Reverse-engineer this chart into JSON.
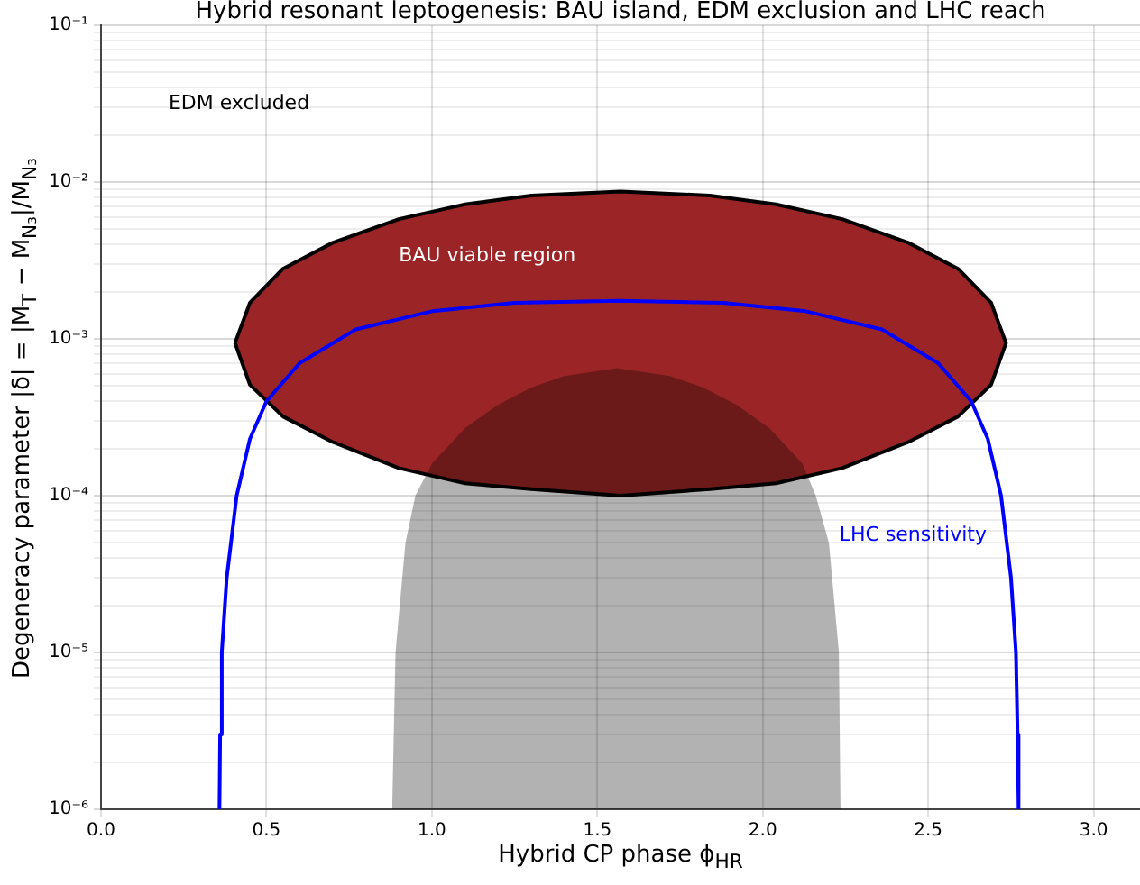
{
  "chart_data": {
    "type": "line",
    "title": "Hybrid resonant leptogenesis: BAU island, EDM exclusion and LHC reach",
    "xlabel": "Hybrid CP phase ϕ$_{HR}$",
    "ylabel": "Degeneracy parameter |δ| = |M$_{T}$ − M$_{N₃}$|/M$_{N₃}$",
    "log": "y",
    "grid": true,
    "marker": "none",
    "line_style": "solid",
    "xlim": [
      0,
      3.14
    ],
    "xticks": [
      {
        "value": 0,
        "label": "0.0"
      },
      {
        "value": 0.5,
        "label": "0.5"
      },
      {
        "value": 1,
        "label": "1.0"
      },
      {
        "value": 1.5,
        "label": "1.5"
      },
      {
        "value": 2,
        "label": "2.0"
      },
      {
        "value": 2.5,
        "label": "2.5"
      },
      {
        "value": 3,
        "label": "3.0"
      }
    ],
    "ylim": [
      1e-06,
      0.1
    ],
    "yticks": [
      {
        "value": 1e-06,
        "label": "10⁻⁶"
      },
      {
        "value": 2e-06,
        "label": null
      },
      {
        "value": 3e-06,
        "label": null
      },
      {
        "value": 4e-06,
        "label": null
      },
      {
        "value": 5e-06,
        "label": null
      },
      {
        "value": 6e-06,
        "label": null
      },
      {
        "value": 7e-06,
        "label": null
      },
      {
        "value": 8e-06,
        "label": null
      },
      {
        "value": 9e-06,
        "label": null
      },
      {
        "value": 1e-05,
        "label": "10⁻⁵"
      },
      {
        "value": 2e-05,
        "label": null
      },
      {
        "value": 3e-05,
        "label": null
      },
      {
        "value": 4e-05,
        "label": null
      },
      {
        "value": 5e-05,
        "label": null
      },
      {
        "value": 6e-05,
        "label": null
      },
      {
        "value": 7e-05,
        "label": null
      },
      {
        "value": 8e-05,
        "label": null
      },
      {
        "value": 9e-05,
        "label": null
      },
      {
        "value": 0.0001,
        "label": "10⁻⁴"
      },
      {
        "value": 0.0002,
        "label": null
      },
      {
        "value": 0.0003,
        "label": null
      },
      {
        "value": 0.0004,
        "label": null
      },
      {
        "value": 0.0005,
        "label": null
      },
      {
        "value": 0.0006,
        "label": null
      },
      {
        "value": 0.0007,
        "label": null
      },
      {
        "value": 0.0008,
        "label": null
      },
      {
        "value": 0.0009,
        "label": null
      },
      {
        "value": 0.001,
        "label": "10⁻³"
      },
      {
        "value": 0.002,
        "label": null
      },
      {
        "value": 0.003,
        "label": null
      },
      {
        "value": 0.004,
        "label": null
      },
      {
        "value": 0.005,
        "label": null
      },
      {
        "value": 0.006,
        "label": null
      },
      {
        "value": 0.007,
        "label": null
      },
      {
        "value": 0.008,
        "label": null
      },
      {
        "value": 0.009,
        "label": null
      },
      {
        "value": 0.01,
        "label": "10⁻²"
      },
      {
        "value": 0.02,
        "label": null
      },
      {
        "value": 0.03,
        "label": null
      },
      {
        "value": 0.04,
        "label": null
      },
      {
        "value": 0.05,
        "label": null
      },
      {
        "value": 0.06,
        "label": null
      },
      {
        "value": 0.07,
        "label": null
      },
      {
        "value": 0.08,
        "label": null
      },
      {
        "value": 0.09,
        "label": null
      },
      {
        "value": 0.1,
        "label": "10⁻¹"
      }
    ],
    "series": [
      {
        "type": "area",
        "name": "BAU viable region",
        "color": "#9b2526",
        "x": [
          0.405,
          0.45,
          0.55,
          0.7,
          0.9,
          1.1,
          1.3,
          1.57,
          1.84,
          2.04,
          2.24,
          2.44,
          2.59,
          2.69,
          2.735,
          2.69,
          2.59,
          2.44,
          2.24,
          2.04,
          1.84,
          1.57,
          1.3,
          1.1,
          0.9,
          0.7,
          0.55,
          0.45,
          0.405
        ],
        "values": [
          0.00094,
          0.0017,
          0.0028,
          0.0041,
          0.0058,
          0.0072,
          0.0082,
          0.0087,
          0.0082,
          0.0072,
          0.0058,
          0.0041,
          0.0028,
          0.0017,
          0.00094,
          0.00051,
          0.00032,
          0.00022,
          0.00015,
          0.00012,
          0.00011,
          0.0001,
          0.00011,
          0.00012,
          0.00015,
          0.00022,
          0.00032,
          0.00051,
          0.00094
        ]
      },
      {
        "type": "area",
        "color": "#000000",
        "x": [
          0.88,
          0.89,
          0.92,
          0.95,
          1.0,
          1.1,
          1.2,
          1.3,
          1.4,
          1.56,
          1.72,
          1.82,
          1.92,
          2.02,
          2.12,
          2.16,
          2.2,
          2.23,
          2.235
        ],
        "values": [
          1e-06,
          1e-05,
          5e-05,
          0.0001,
          0.00016,
          0.00027,
          0.00038,
          0.00049,
          0.00058,
          0.00065,
          0.00058,
          0.00049,
          0.00038,
          0.00027,
          0.00016,
          0.0001,
          5e-05,
          1e-05,
          1e-06
        ]
      },
      {
        "type": "line",
        "name": "LHC sensitivity",
        "color": "#0000ff",
        "x": [
          0.358,
          0.36,
          0.365,
          0.38,
          0.41,
          0.45,
          0.5,
          0.6,
          0.77,
          1.0,
          1.25,
          1.566,
          1.88,
          2.13,
          2.36,
          2.53,
          2.63,
          2.68,
          2.72,
          2.75,
          2.765,
          2.77,
          2.773
        ],
        "values": [
          1e-06,
          3e-06,
          1e-05,
          3e-05,
          0.0001,
          0.00023,
          0.0004,
          0.0007,
          0.00115,
          0.0015,
          0.0017,
          0.00175,
          0.0017,
          0.0015,
          0.00115,
          0.0007,
          0.0004,
          0.00023,
          0.0001,
          3e-05,
          1e-05,
          3e-06,
          1e-06
        ]
      }
    ],
    "annotations": [
      "EDM excluded"
    ]
  }
}
